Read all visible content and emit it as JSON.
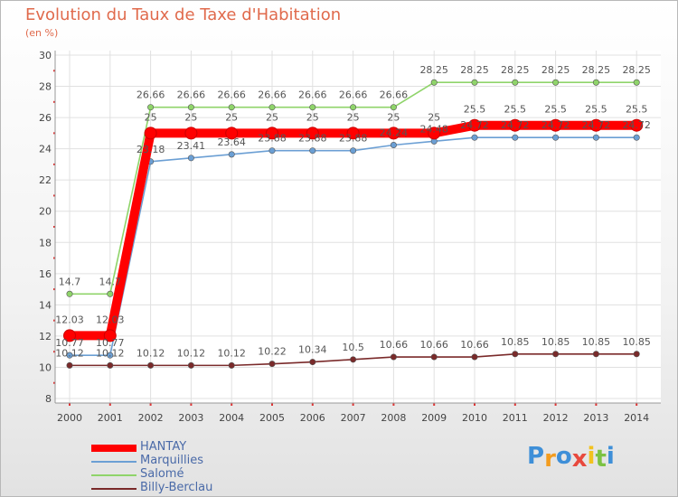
{
  "chart_data": {
    "type": "line",
    "title": "Evolution du Taux de Taxe d'Habitation",
    "subtitle": "(en %)",
    "ylim": [
      8,
      30
    ],
    "yticks": [
      8,
      10,
      12,
      14,
      16,
      18,
      20,
      22,
      24,
      26,
      28,
      30
    ],
    "x": [
      "2000",
      "2001",
      "2002",
      "2003",
      "2004",
      "2005",
      "2006",
      "2007",
      "2008",
      "2009",
      "2010",
      "2011",
      "2012",
      "2013",
      "2014"
    ],
    "series": [
      {
        "name": "HANTAY",
        "color": "#ff0000",
        "values": [
          12.03,
          12.03,
          25,
          25,
          25,
          25,
          25,
          25,
          25,
          25,
          25.5,
          25.5,
          25.5,
          25.5,
          25.5
        ],
        "labels": [
          "12.03",
          "12.03",
          "25",
          "25",
          "25",
          "25",
          "25",
          "25",
          "25",
          "25",
          "25.5",
          "25.5",
          "25.5",
          "25.5",
          "25.5"
        ]
      },
      {
        "name": "Marquillies",
        "color": "#6b9fd4",
        "values": [
          10.77,
          10.77,
          23.18,
          23.41,
          23.64,
          23.88,
          23.88,
          23.88,
          24.24,
          24.48,
          24.72,
          24.72,
          24.72,
          24.72,
          24.72
        ],
        "labels": [
          "10.77",
          "10.77",
          "23.18",
          "23.41",
          "23.64",
          "23.88",
          "23.88",
          "23.88",
          "24.24",
          "24.48",
          "24.72",
          "24.72",
          "24.72",
          "24.72",
          "24.72"
        ]
      },
      {
        "name": "Salomé",
        "color": "#8fd46a",
        "values": [
          14.7,
          14.7,
          26.66,
          26.66,
          26.66,
          26.66,
          26.66,
          26.66,
          26.66,
          28.25,
          28.25,
          28.25,
          28.25,
          28.25,
          28.25
        ],
        "labels": [
          "14.7",
          "14.7",
          "26.66",
          "26.66",
          "26.66",
          "26.66",
          "26.66",
          "26.66",
          "26.66",
          "28.25",
          "28.25",
          "28.25",
          "28.25",
          "28.25",
          "28.25"
        ]
      },
      {
        "name": "Billy-Berclau",
        "color": "#7a2a2a",
        "values": [
          10.12,
          10.12,
          10.12,
          10.12,
          10.12,
          10.22,
          10.34,
          10.5,
          10.66,
          10.66,
          10.66,
          10.85,
          10.85,
          10.85,
          10.85
        ],
        "labels": [
          "10.12",
          "10.12",
          "10.12",
          "10.12",
          "10.12",
          "10.22",
          "10.34",
          "10.5",
          "10.66",
          "10.66",
          "10.66",
          "10.85",
          "10.85",
          "10.85",
          "10.85"
        ]
      }
    ],
    "legend": [
      "HANTAY",
      "Marquillies",
      "Salomé",
      "Billy-Berclau"
    ]
  },
  "logo": {
    "text": "Proxiti",
    "colors": [
      "#3e8fd8",
      "#f39c1f",
      "#3e8fd8",
      "#e8493d",
      "#f2c21e",
      "#7cc243",
      "#3e8fd8"
    ]
  }
}
